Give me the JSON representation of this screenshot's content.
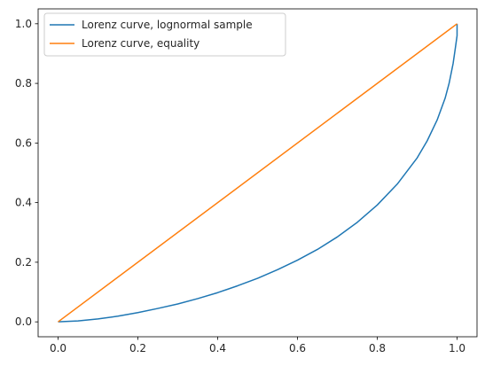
{
  "chart_data": {
    "type": "line",
    "title": "",
    "xlabel": "",
    "ylabel": "",
    "xlim": [
      -0.05,
      1.05
    ],
    "ylim": [
      -0.05,
      1.05
    ],
    "x_ticks": [
      0.0,
      0.2,
      0.4,
      0.6,
      0.8,
      1.0
    ],
    "y_ticks": [
      0.0,
      0.2,
      0.4,
      0.6,
      0.8,
      1.0
    ],
    "x_tick_labels": [
      "0.0",
      "0.2",
      "0.4",
      "0.6",
      "0.8",
      "1.0"
    ],
    "y_tick_labels": [
      "0.0",
      "0.2",
      "0.4",
      "0.6",
      "0.8",
      "1.0"
    ],
    "grid": false,
    "legend_position": "top-left",
    "series": [
      {
        "name": "Lorenz curve, lognormal sample",
        "color": "#1f77b4",
        "x": [
          0.0,
          0.05,
          0.1,
          0.15,
          0.2,
          0.25,
          0.3,
          0.35,
          0.4,
          0.45,
          0.5,
          0.55,
          0.6,
          0.65,
          0.7,
          0.75,
          0.8,
          0.85,
          0.9,
          0.925,
          0.95,
          0.97,
          0.98,
          0.99,
          0.995,
          1.0,
          1.0
        ],
        "y": [
          0.0,
          0.003,
          0.01,
          0.019,
          0.031,
          0.045,
          0.06,
          0.078,
          0.098,
          0.121,
          0.146,
          0.175,
          0.207,
          0.243,
          0.285,
          0.334,
          0.392,
          0.462,
          0.55,
          0.607,
          0.677,
          0.75,
          0.8,
          0.866,
          0.912,
          0.96,
          1.0
        ]
      },
      {
        "name": "Lorenz curve, equality",
        "color": "#ff7f0e",
        "x": [
          0.0,
          1.0
        ],
        "y": [
          0.0,
          1.0
        ]
      }
    ]
  }
}
